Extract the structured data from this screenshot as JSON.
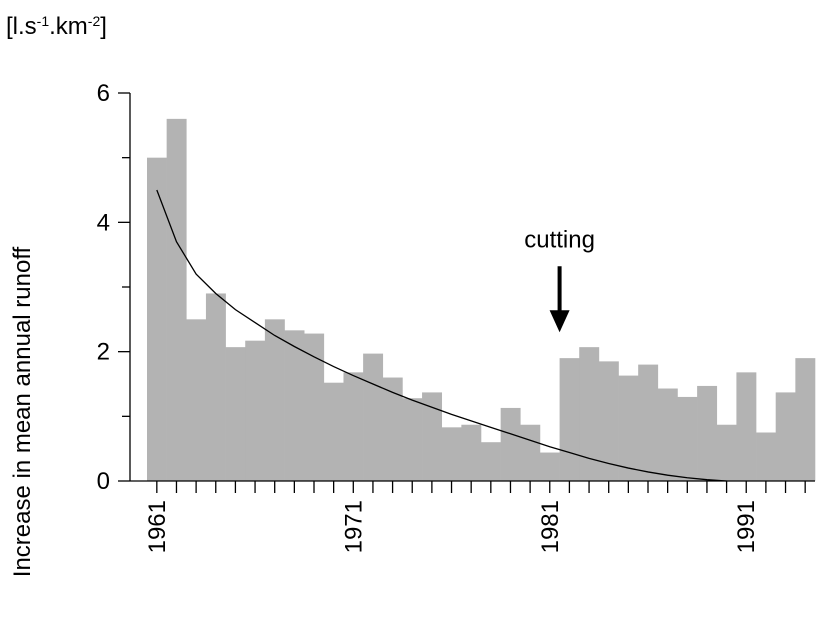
{
  "chart_data": {
    "type": "bar",
    "y_label": "Increase in mean annual runoff",
    "y_unit": [
      {
        "text": "[l.s"
      },
      {
        "text": "-1",
        "sup": true
      },
      {
        "text": ".km"
      },
      {
        "text": "-2",
        "sup": true
      },
      {
        "text": "]"
      }
    ],
    "x": [
      1961,
      1962,
      1963,
      1964,
      1965,
      1966,
      1967,
      1968,
      1969,
      1970,
      1971,
      1972,
      1973,
      1974,
      1975,
      1976,
      1977,
      1978,
      1979,
      1980,
      1981,
      1982,
      1983,
      1984,
      1985,
      1986,
      1987,
      1988,
      1989,
      1990,
      1991,
      1992,
      1993,
      1994
    ],
    "values": [
      5.0,
      5.6,
      2.5,
      2.9,
      2.07,
      2.17,
      2.5,
      2.33,
      2.28,
      1.52,
      1.68,
      1.97,
      1.6,
      1.28,
      1.37,
      0.83,
      0.87,
      0.6,
      1.13,
      0.87,
      0.44,
      1.9,
      2.07,
      1.85,
      1.63,
      1.8,
      1.43,
      1.3,
      1.47,
      0.87,
      1.68,
      0.75,
      1.37,
      1.9
    ],
    "color": "#b3b3b3",
    "fit_line": {
      "x": [
        1961,
        1962,
        1963,
        1964,
        1965,
        1966,
        1967,
        1968,
        1969,
        1970,
        1971,
        1972,
        1973,
        1974,
        1975,
        1976,
        1977,
        1978,
        1979,
        1980,
        1981,
        1982,
        1983,
        1984,
        1985,
        1986,
        1987,
        1988,
        1989,
        1990
      ],
      "values": [
        4.5,
        3.7,
        3.2,
        2.9,
        2.65,
        2.45,
        2.25,
        2.08,
        1.92,
        1.77,
        1.63,
        1.5,
        1.37,
        1.25,
        1.14,
        1.03,
        0.93,
        0.83,
        0.73,
        0.63,
        0.53,
        0.44,
        0.35,
        0.27,
        0.2,
        0.14,
        0.09,
        0.05,
        0.02,
        0
      ],
      "color": "#000000"
    },
    "annotation": {
      "text": "cutting",
      "x": 1981.5,
      "y": 2.3
    },
    "xlim": [
      1960.5,
      1994.5
    ],
    "xticks": [
      1961,
      1971,
      1981,
      1991
    ],
    "ylim": [
      0,
      6
    ],
    "yticks": [
      0,
      2,
      4,
      6
    ],
    "yminor_ticks": [
      1,
      3,
      5
    ]
  }
}
